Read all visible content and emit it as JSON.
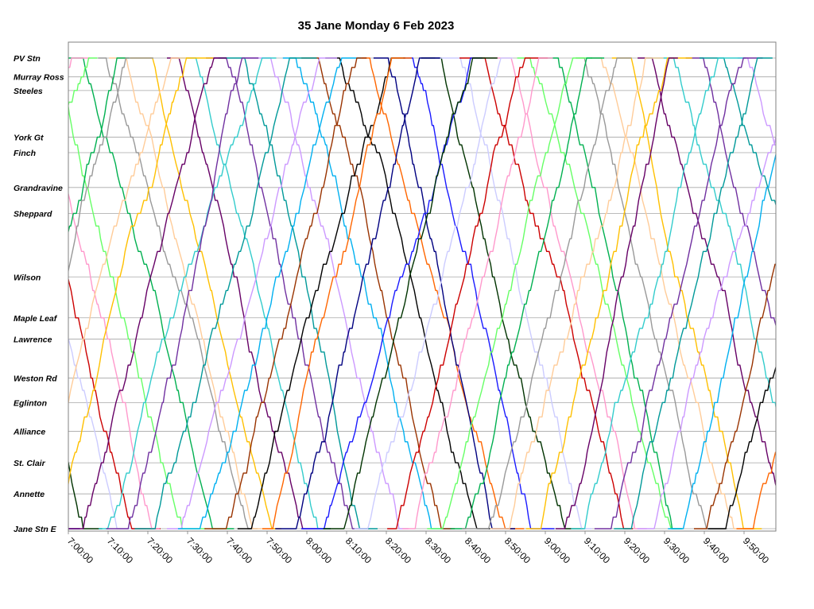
{
  "chart_data": {
    "type": "line",
    "title": "35 Jane Monday 6 Feb 2023",
    "xlabel": "",
    "ylabel": "",
    "x_range": [
      "7:00:00",
      "9:58:00"
    ],
    "x_ticks": [
      "7:00:00",
      "7:10:00",
      "7:20:00",
      "7:30:00",
      "7:40:00",
      "7:50:00",
      "8:00:00",
      "8:10:00",
      "8:20:00",
      "8:30:00",
      "8:40:00",
      "8:50:00",
      "9:00:00",
      "9:10:00",
      "9:20:00",
      "9:30:00",
      "9:40:00",
      "9:50:00"
    ],
    "y_axis_stops": [
      {
        "name": "PV Stn",
        "pos": 0.0
      },
      {
        "name": "Murray Ross",
        "pos": 0.04
      },
      {
        "name": "Steeles",
        "pos": 0.069
      },
      {
        "name": "York Gt",
        "pos": 0.168
      },
      {
        "name": "Finch",
        "pos": 0.201
      },
      {
        "name": "Grandravine",
        "pos": 0.275
      },
      {
        "name": "Sheppard",
        "pos": 0.33
      },
      {
        "name": "Wilson",
        "pos": 0.465
      },
      {
        "name": "Maple Leaf",
        "pos": 0.552
      },
      {
        "name": "Lawrence",
        "pos": 0.597
      },
      {
        "name": "Weston Rd",
        "pos": 0.68
      },
      {
        "name": "Eglinton",
        "pos": 0.732
      },
      {
        "name": "Alliance",
        "pos": 0.793
      },
      {
        "name": "St. Clair",
        "pos": 0.86
      },
      {
        "name": "Annette",
        "pos": 0.926
      },
      {
        "name": "Jane Stn E",
        "pos": 1.0
      }
    ],
    "grid": true,
    "legend": "none",
    "colors": [
      "#1a1aff",
      "#cc0000",
      "#00b050",
      "#ffc000",
      "#7030a0",
      "#00b0f0",
      "#ff6600",
      "#003300",
      "#ff99cc",
      "#999999",
      "#660066",
      "#009999",
      "#993300",
      "#000080",
      "#ccccff",
      "#66ff66",
      "#ffcc99",
      "#33cccc",
      "#cc99ff",
      "#000000"
    ],
    "trip_pattern": {
      "southbound_departures_min": [
        -34,
        -28,
        -22,
        -16,
        -10,
        -4,
        2,
        8,
        14,
        20,
        26,
        32,
        38,
        44,
        50,
        56,
        62,
        68,
        74,
        80,
        86,
        92,
        98,
        104,
        110,
        116,
        122,
        128,
        134,
        140,
        146,
        152,
        158,
        164,
        170
      ],
      "northbound_departures_min": [
        -33,
        -27,
        -21,
        -15,
        -9,
        -3,
        3,
        9,
        15,
        21,
        27,
        33,
        39,
        45,
        51,
        57,
        63,
        69,
        75,
        81,
        87,
        93,
        99,
        105,
        111,
        117,
        123,
        129,
        135,
        141,
        147,
        153,
        159,
        165,
        171
      ],
      "run_time_min": [
        26,
        33
      ],
      "layover_min": [
        2,
        7
      ]
    }
  }
}
